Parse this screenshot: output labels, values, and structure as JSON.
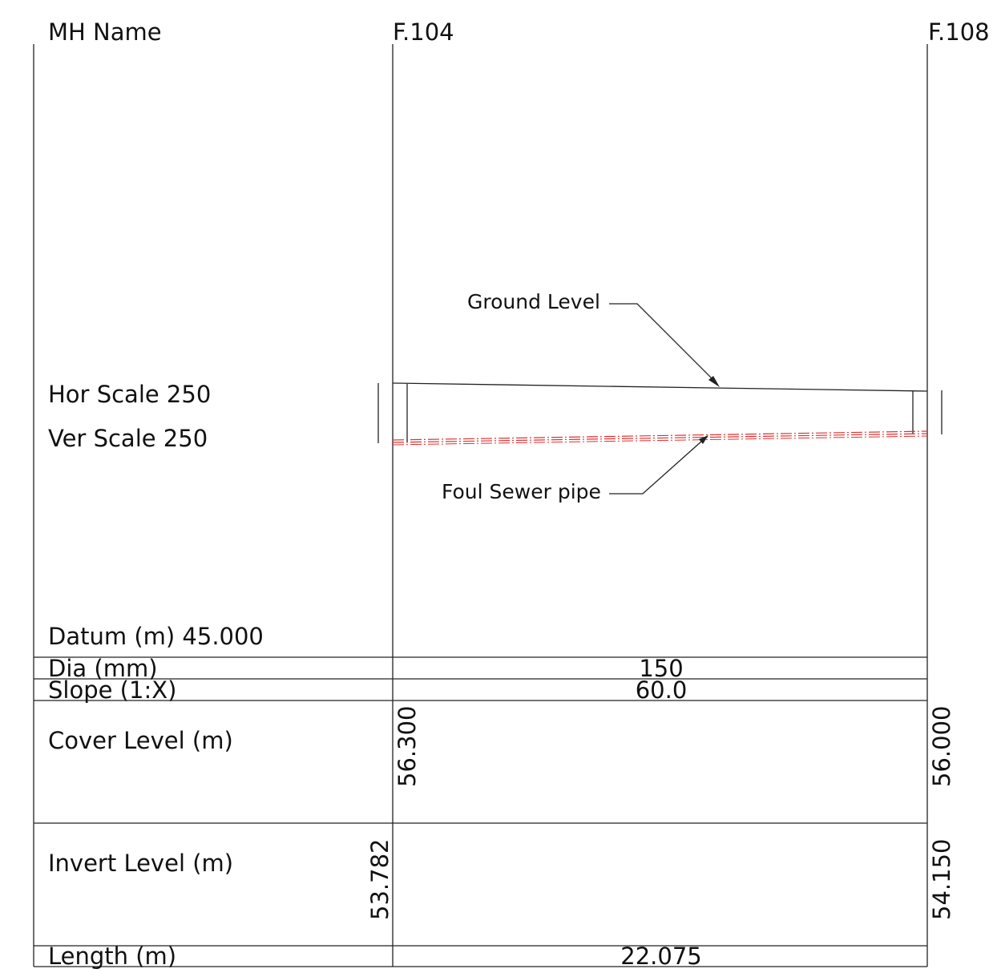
{
  "header": {
    "mh_name_label": "MH Name",
    "manhole_start": "F.104",
    "manhole_end": "F.108"
  },
  "scales": {
    "horizontal": "Hor Scale 250",
    "vertical": "Ver Scale 250"
  },
  "annotations": {
    "ground_level": "Ground Level",
    "foul_sewer_pipe": "Foul Sewer pipe"
  },
  "table": {
    "datum": "Datum (m) 45.000",
    "dia_label": "Dia (mm)",
    "dia_value": "150",
    "slope_label": "Slope (1:X)",
    "slope_value": "60.0",
    "cover_label": "Cover Level (m)",
    "cover_start": "56.300",
    "cover_end": "56.000",
    "invert_label": "Invert Level (m)",
    "invert_start": "53.782",
    "invert_end": "54.150",
    "length_label": "Length (m)",
    "length_value": "22.075"
  },
  "colors": {
    "pipe": "#e03030",
    "lines": "#222222"
  }
}
